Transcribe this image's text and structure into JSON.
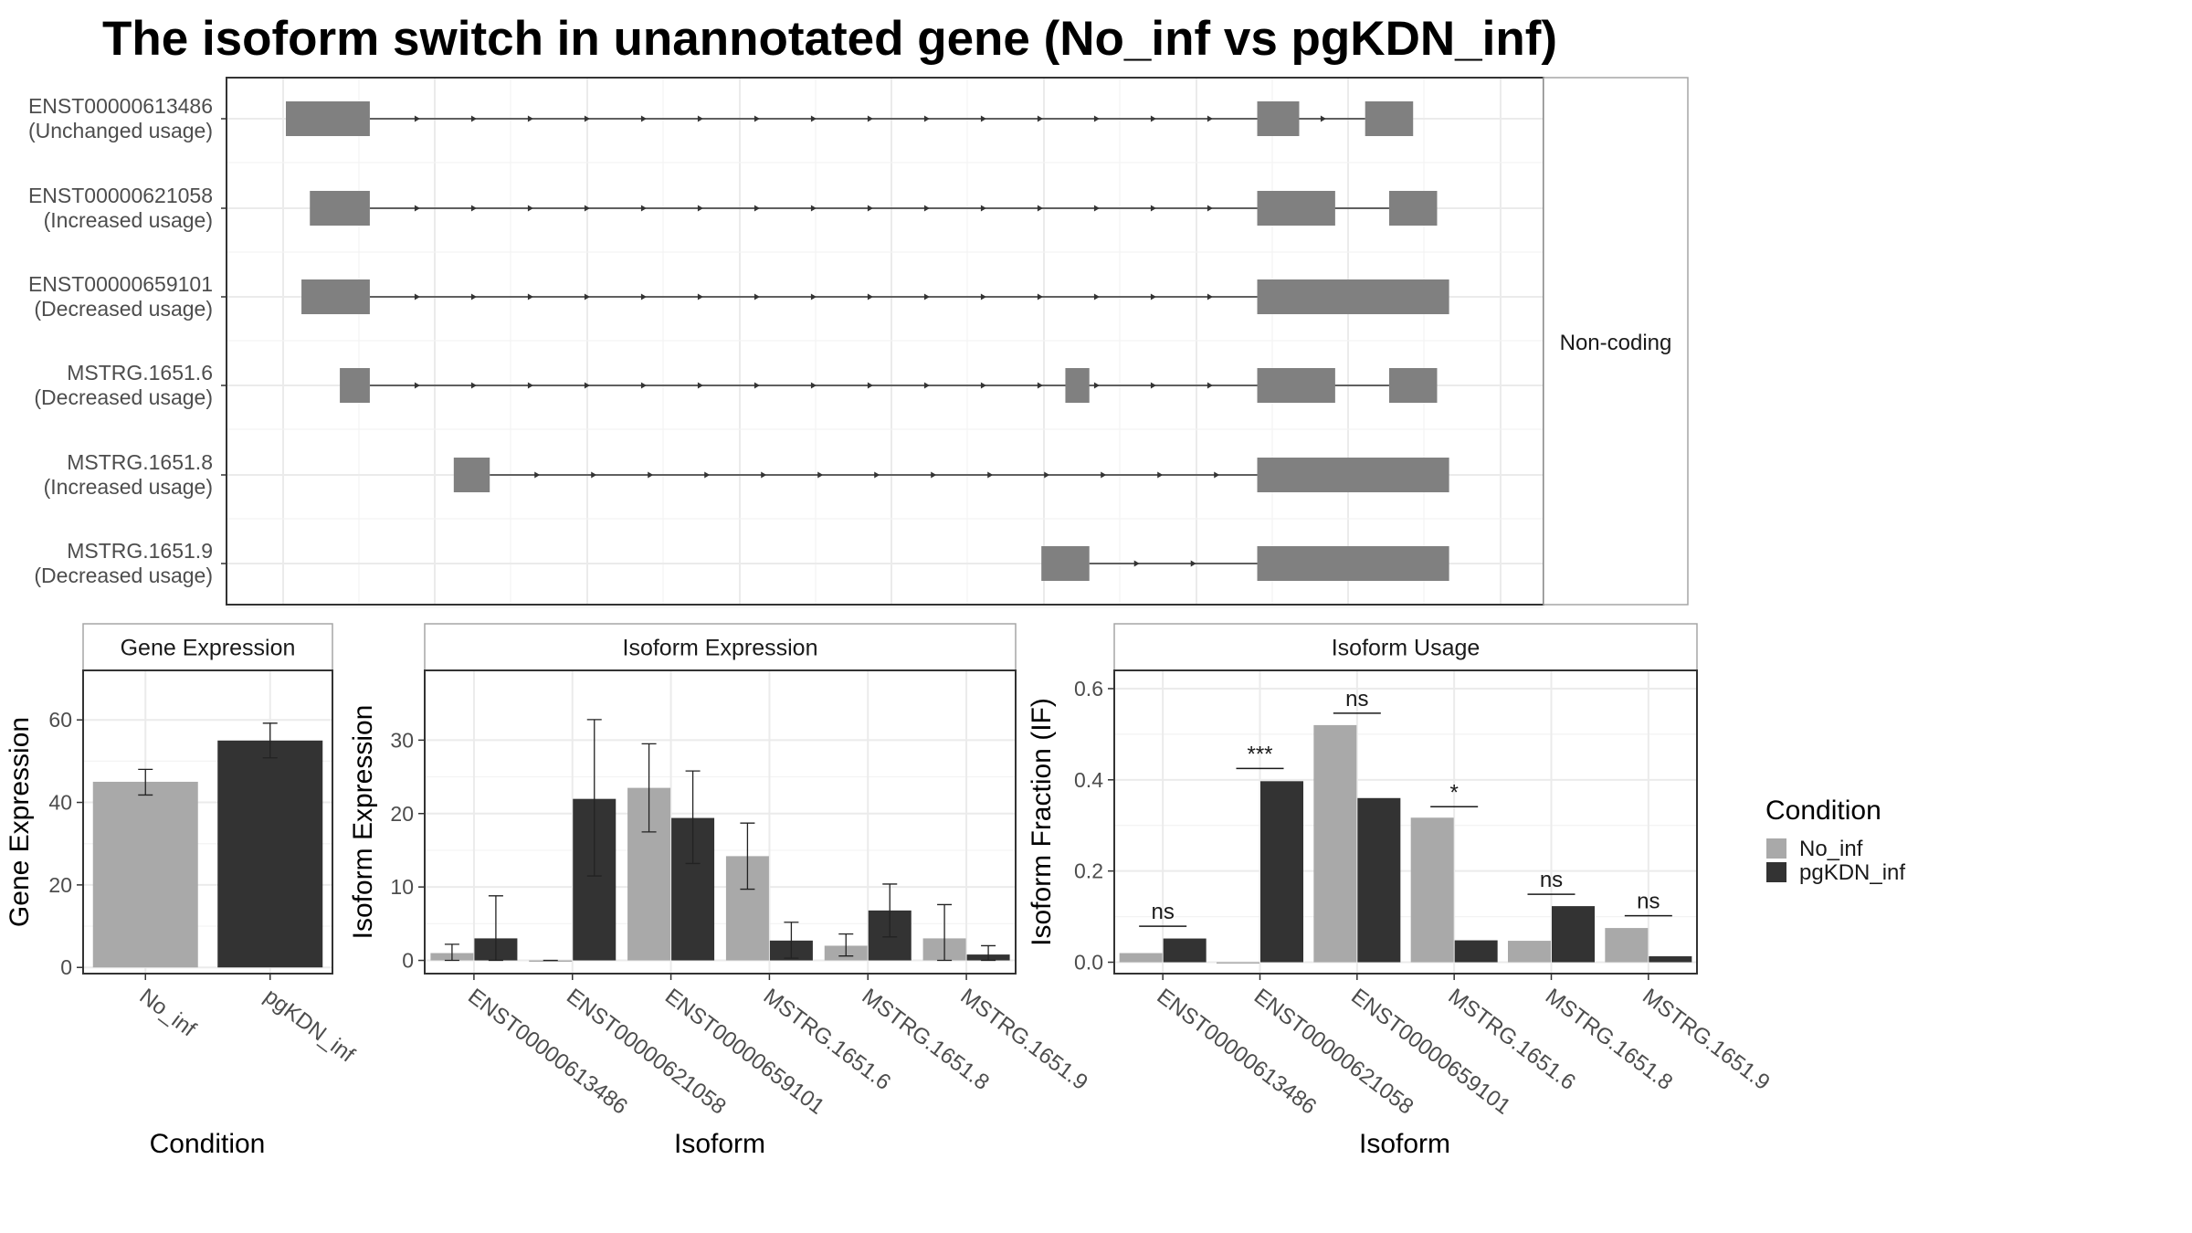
{
  "title": "The isoform switch in unannotated gene (No_inf vs pgKDN_inf)",
  "colors": {
    "no_inf": "#a9a9a9",
    "pgkdn_inf": "#333333",
    "exon": "#808080",
    "grid": "#ebebeb",
    "frame": "#333333",
    "strip_border": "#a6a6a6"
  },
  "legend": {
    "title": "Condition",
    "items": [
      {
        "label": "No_inf",
        "color": "#a9a9a9"
      },
      {
        "label": "pgKDN_inf",
        "color": "#333333"
      }
    ]
  },
  "chart_data": [
    {
      "type": "gene-structure",
      "facet_label": "Non-coding",
      "x_range": [
        0,
        100
      ],
      "isoforms": [
        {
          "name": "ENST00000613486",
          "usage": "(Unchanged usage)",
          "exons": [
            [
              0,
              7
            ],
            [
              81,
              84.5
            ],
            [
              90,
              94
            ]
          ],
          "intron_ends": [
            7,
            90
          ]
        },
        {
          "name": "ENST00000621058",
          "usage": "(Increased usage)",
          "exons": [
            [
              2,
              7
            ],
            [
              81,
              87.5
            ],
            [
              92,
              96
            ]
          ],
          "intron_ends": [
            7,
            92
          ]
        },
        {
          "name": "ENST00000659101",
          "usage": "(Decreased usage)",
          "exons": [
            [
              1.3,
              7
            ],
            [
              81,
              97
            ]
          ],
          "intron_ends": [
            7,
            81
          ]
        },
        {
          "name": "MSTRG.1651.6",
          "usage": "(Decreased usage)",
          "exons": [
            [
              4.5,
              7
            ],
            [
              65,
              67
            ],
            [
              81,
              87.5
            ],
            [
              92,
              96
            ]
          ],
          "intron_ends": [
            7,
            92
          ]
        },
        {
          "name": "MSTRG.1651.8",
          "usage": "(Increased usage)",
          "exons": [
            [
              14,
              17
            ],
            [
              81,
              97
            ]
          ],
          "intron_ends": [
            17,
            81
          ]
        },
        {
          "name": "MSTRG.1651.9",
          "usage": "(Decreased usage)",
          "exons": [
            [
              63,
              67
            ],
            [
              81,
              97
            ]
          ],
          "intron_ends": [
            67,
            81
          ]
        }
      ]
    },
    {
      "type": "bar",
      "facet_label": "Gene Expression",
      "xlabel": "Condition",
      "ylabel": "Gene Expression",
      "categories": [
        "No_inf",
        "pgKDN_inf"
      ],
      "values": [
        45,
        55
      ],
      "errors": [
        [
          41.8,
          48
        ],
        [
          50.8,
          59.2
        ]
      ],
      "ylim": [
        -1.5,
        72
      ],
      "yticks": [
        0,
        20,
        40,
        60
      ]
    },
    {
      "type": "bar",
      "facet_label": "Isoform Expression",
      "xlabel": "Isoform",
      "ylabel": "Isoform Expression",
      "categories": [
        "ENST00000613486",
        "ENST00000621058",
        "ENST00000659101",
        "MSTRG.1651.6",
        "MSTRG.1651.8",
        "MSTRG.1651.9"
      ],
      "series": [
        {
          "name": "No_inf",
          "values": [
            1.0,
            0,
            23.5,
            14.2,
            2.0,
            3.0
          ],
          "errors": [
            [
              0,
              2.2
            ],
            [
              0,
              0
            ],
            [
              17.5,
              29.5
            ],
            [
              9.7,
              18.7
            ],
            [
              0.6,
              3.6
            ],
            [
              0,
              7.6
            ]
          ]
        },
        {
          "name": "pgKDN_inf",
          "values": [
            3.0,
            22.0,
            19.4,
            2.7,
            6.8,
            0.8
          ],
          "errors": [
            [
              0,
              8.8
            ],
            [
              11.5,
              32.8
            ],
            [
              13.2,
              25.8
            ],
            [
              0.3,
              5.2
            ],
            [
              3.2,
              10.4
            ],
            [
              0,
              2.0
            ]
          ]
        }
      ],
      "ylim": [
        -1.8,
        39.5
      ],
      "yticks": [
        0,
        10,
        20,
        30
      ]
    },
    {
      "type": "bar",
      "facet_label": "Isoform Usage",
      "xlabel": "Isoform",
      "ylabel": "Isoform Fraction (IF)",
      "categories": [
        "ENST00000613486",
        "ENST00000621058",
        "ENST00000659101",
        "MSTRG.1651.6",
        "MSTRG.1651.8",
        "MSTRG.1651.9"
      ],
      "series": [
        {
          "name": "No_inf",
          "values": [
            0.02,
            0.0,
            0.52,
            0.317,
            0.047,
            0.075
          ]
        },
        {
          "name": "pgKDN_inf",
          "values": [
            0.052,
            0.397,
            0.36,
            0.048,
            0.123,
            0.013
          ]
        }
      ],
      "significance": [
        "ns",
        "***",
        "ns",
        "*",
        "ns",
        "ns"
      ],
      "sig_line_y": [
        0.079,
        0.425,
        0.546,
        0.341,
        0.149,
        0.102
      ],
      "ylim": [
        -0.025,
        0.64
      ],
      "yticks": [
        "0.0",
        "0.2",
        "0.4",
        "0.6"
      ]
    }
  ]
}
